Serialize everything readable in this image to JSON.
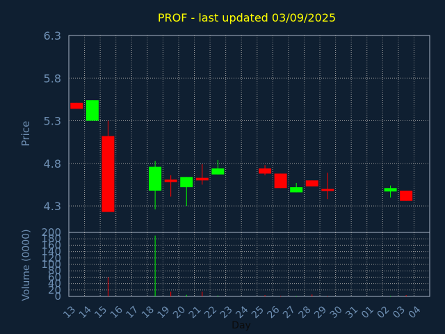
{
  "chart_data": [
    {
      "type": "candlestick",
      "title": "PROF - last updated 03/09/2025",
      "ylabel": "Price",
      "ylim": [
        3.99,
        6.3
      ],
      "yticks": [
        "6.3",
        "5.8",
        "5.3",
        "4.8",
        "4.3"
      ],
      "ytick_values": [
        6.3,
        5.8,
        5.3,
        4.8,
        4.3
      ],
      "grid": true,
      "colors": {
        "up": "#00ff00",
        "down": "#ff0000",
        "title": "#ffff00",
        "axis_text": "#6e8fb3",
        "grid": "#a0a0a0",
        "background": "#0f1f31",
        "plot": "#ffffff"
      },
      "x": [
        "13",
        "14",
        "15",
        "16",
        "17",
        "18",
        "19",
        "20",
        "21",
        "22",
        "23",
        "24",
        "25",
        "26",
        "27",
        "28",
        "29",
        "30",
        "31",
        "01",
        "02",
        "03",
        "04"
      ],
      "candles": [
        {
          "x": "13",
          "open": 5.51,
          "close": 5.44,
          "high": 5.51,
          "low": 5.44
        },
        {
          "x": "14",
          "open": 5.3,
          "close": 5.54,
          "high": 5.54,
          "low": 5.3
        },
        {
          "x": "15",
          "open": 5.12,
          "close": 4.23,
          "high": 5.3,
          "low": 4.23
        },
        {
          "x": "18",
          "open": 4.48,
          "close": 4.76,
          "high": 4.83,
          "low": 4.26
        },
        {
          "x": "19",
          "open": 4.61,
          "close": 4.58,
          "high": 4.66,
          "low": 4.41
        },
        {
          "x": "20",
          "open": 4.52,
          "close": 4.64,
          "high": 4.64,
          "low": 4.3
        },
        {
          "x": "21",
          "open": 4.63,
          "close": 4.6,
          "high": 4.79,
          "low": 4.55
        },
        {
          "x": "22",
          "open": 4.67,
          "close": 4.74,
          "high": 4.84,
          "low": 4.67
        },
        {
          "x": "25",
          "open": 4.74,
          "close": 4.68,
          "high": 4.78,
          "low": 4.66
        },
        {
          "x": "26",
          "open": 4.68,
          "close": 4.51,
          "high": 4.68,
          "low": 4.51
        },
        {
          "x": "27",
          "open": 4.46,
          "close": 4.52,
          "high": 4.57,
          "low": 4.46
        },
        {
          "x": "28",
          "open": 4.6,
          "close": 4.53,
          "high": 4.6,
          "low": 4.53
        },
        {
          "x": "29",
          "open": 4.5,
          "close": 4.48,
          "high": 4.69,
          "low": 4.38
        },
        {
          "x": "02",
          "open": 4.47,
          "close": 4.51,
          "high": 4.54,
          "low": 4.4
        },
        {
          "x": "03",
          "open": 4.48,
          "close": 4.36,
          "high": 4.48,
          "low": 4.36
        }
      ]
    },
    {
      "type": "bar",
      "ylabel": "Volume (0000)",
      "xlabel": "Day",
      "ylim": [
        0,
        200
      ],
      "yticks": [
        "200",
        "180",
        "160",
        "140",
        "120",
        "100",
        "80",
        "60",
        "40",
        "20",
        "0"
      ],
      "ytick_values": [
        200,
        180,
        160,
        140,
        120,
        100,
        80,
        60,
        40,
        20,
        0
      ],
      "grid": true,
      "x": [
        "13",
        "14",
        "15",
        "16",
        "17",
        "18",
        "19",
        "20",
        "21",
        "22",
        "23",
        "24",
        "25",
        "26",
        "27",
        "28",
        "29",
        "30",
        "31",
        "01",
        "02",
        "03",
        "04"
      ],
      "bars": [
        {
          "x": "13",
          "value": 0,
          "direction": "down"
        },
        {
          "x": "14",
          "value": 0,
          "direction": "up"
        },
        {
          "x": "15",
          "value": 60,
          "direction": "down"
        },
        {
          "x": "18",
          "value": 190,
          "direction": "up"
        },
        {
          "x": "19",
          "value": 15,
          "direction": "down"
        },
        {
          "x": "20",
          "value": 5,
          "direction": "up"
        },
        {
          "x": "21",
          "value": 15,
          "direction": "down"
        },
        {
          "x": "22",
          "value": 3,
          "direction": "up"
        },
        {
          "x": "25",
          "value": 4,
          "direction": "down"
        },
        {
          "x": "26",
          "value": 2,
          "direction": "down"
        },
        {
          "x": "27",
          "value": 2,
          "direction": "up"
        },
        {
          "x": "28",
          "value": 6,
          "direction": "down"
        },
        {
          "x": "29",
          "value": 2,
          "direction": "down"
        },
        {
          "x": "02",
          "value": 2,
          "direction": "up"
        },
        {
          "x": "03",
          "value": 4,
          "direction": "down"
        }
      ]
    }
  ]
}
